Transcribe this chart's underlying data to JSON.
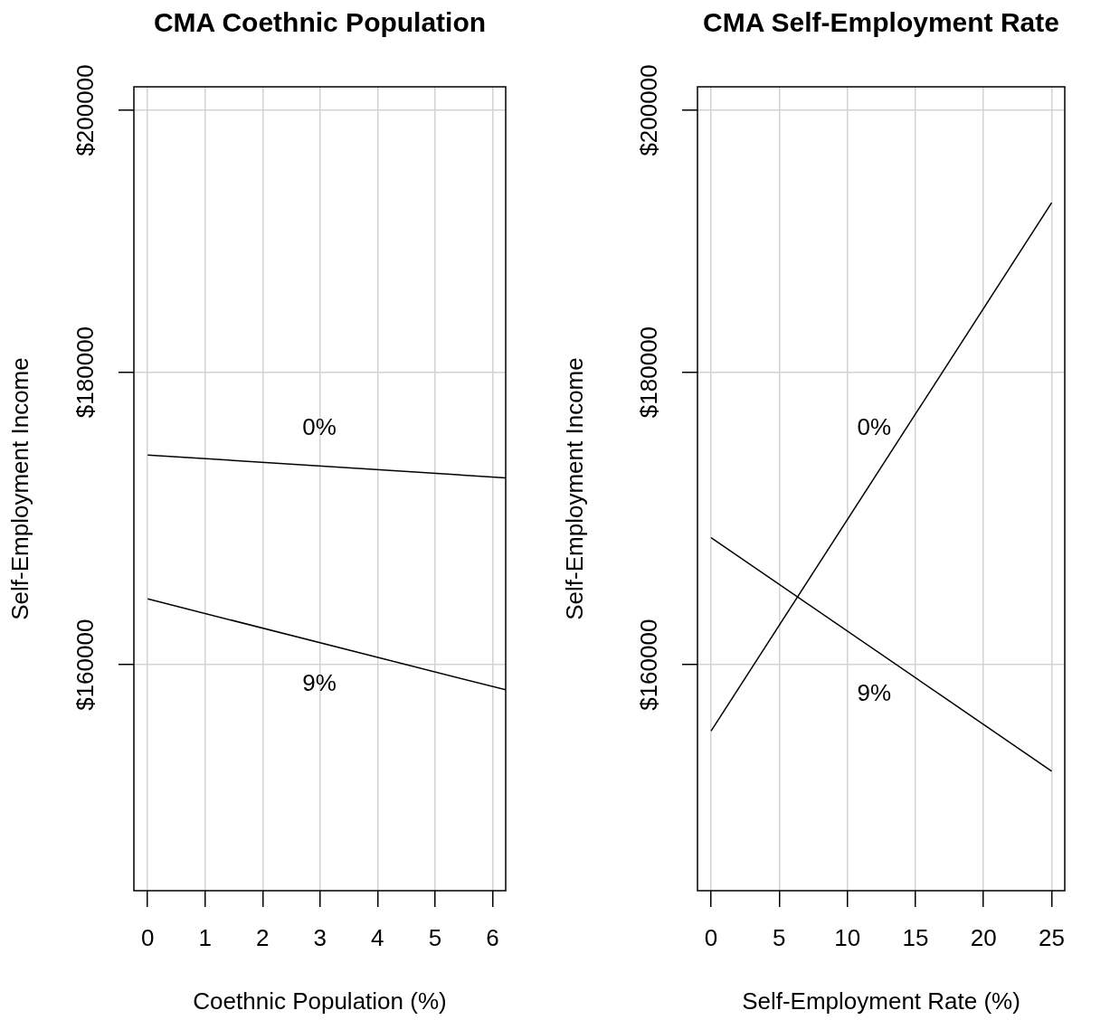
{
  "chart_data": [
    {
      "type": "line",
      "title": "CMA Coethnic Population",
      "xlabel": "Coethnic Population (%)",
      "ylabel": "Self-Employment Income",
      "log": "y",
      "grid": true,
      "xlim": [
        -0.24,
        6.23
      ],
      "xticks": [
        0,
        1,
        2,
        3,
        4,
        5,
        6
      ],
      "ylim": [
        146100,
        201900
      ],
      "yticks": [
        {
          "value": 160000,
          "label": "$160000"
        },
        {
          "value": 180000,
          "label": "$180000"
        },
        {
          "value": 200000,
          "label": "$200000"
        }
      ],
      "series": [
        {
          "name": "0%",
          "color": "#000000",
          "x": [
            0,
            6.23
          ],
          "values": [
            174100,
            172500
          ]
        },
        {
          "name": "9%",
          "color": "#000000",
          "x": [
            0,
            6.23
          ],
          "values": [
            164300,
            158400
          ]
        }
      ]
    },
    {
      "type": "line",
      "title": "CMA Self-Employment Rate",
      "xlabel": "Self-Employment Rate (%)",
      "ylabel": "Self-Employment Income",
      "log": "y",
      "grid": true,
      "xlim": [
        -1,
        25.96
      ],
      "xticks": [
        0,
        5,
        10,
        15,
        20,
        25
      ],
      "ylim": [
        146100,
        201900
      ],
      "yticks": [
        {
          "value": 160000,
          "label": "$160000"
        },
        {
          "value": 180000,
          "label": "$180000"
        },
        {
          "value": 200000,
          "label": "$200000"
        }
      ],
      "series": [
        {
          "name": "0%",
          "color": "#000000",
          "x": [
            0,
            25
          ],
          "values": [
            155800,
            192700
          ]
        },
        {
          "name": "9%",
          "color": "#000000",
          "x": [
            0,
            25
          ],
          "values": [
            168400,
            153300
          ]
        }
      ]
    }
  ]
}
